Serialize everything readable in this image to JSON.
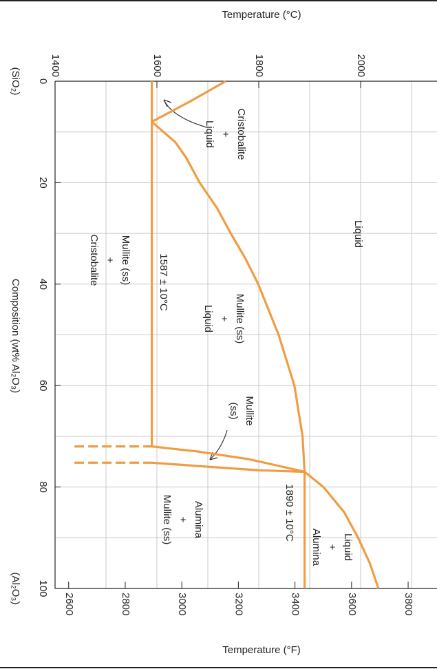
{
  "chart_data": {
    "type": "phase-diagram",
    "title": "Temperature (°C)",
    "y2_label": "Temperature (°F)",
    "x_label": "Composition (wt% Al₂O₃)",
    "x_left_label": "(SiO₂)",
    "x_right_label": "(Al₂O₃)",
    "xlim": [
      0,
      100
    ],
    "xticks": [
      0,
      20,
      40,
      60,
      80,
      100
    ],
    "xgrid": [
      10,
      20,
      30,
      40,
      50,
      60,
      70,
      80,
      90
    ],
    "ylim": [
      1400,
      2150
    ],
    "yticks": [
      1400,
      1600,
      1800,
      2000
    ],
    "ygrid": [
      1500,
      1600,
      1700,
      1800,
      1900,
      2000,
      2100
    ],
    "y2lim": [
      2552,
      3902
    ],
    "y2ticks": [
      2600,
      2800,
      3000,
      3200,
      3400,
      3600,
      3800
    ],
    "color": "#f09c42",
    "grid": true,
    "series": [
      {
        "x": [
          0,
          4,
          8
        ],
        "values": [
          1735,
          1665,
          1590
        ],
        "dash": false
      },
      {
        "x": [
          8,
          12,
          15,
          20,
          25,
          30,
          35,
          40,
          50,
          60,
          70,
          77
        ],
        "values": [
          1590,
          1636,
          1657,
          1684,
          1718,
          1745,
          1774,
          1799,
          1839,
          1870,
          1886,
          1890
        ],
        "dash": false
      },
      {
        "x": [
          77,
          80,
          85,
          90,
          95,
          100
        ],
        "values": [
          1890,
          1927,
          1968,
          1995,
          2018,
          2035
        ],
        "dash": false
      },
      {
        "x": [
          0,
          72
        ],
        "values": [
          1590,
          1590
        ],
        "dash": false
      },
      {
        "x": [
          72,
          73,
          74.5,
          77
        ],
        "values": [
          1590,
          1680,
          1780,
          1890
        ],
        "dash": false
      },
      {
        "x": [
          75.2,
          76,
          76.7,
          77
        ],
        "values": [
          1590,
          1700,
          1800,
          1890
        ],
        "dash": false
      },
      {
        "x": [
          77,
          100
        ],
        "values": [
          1890,
          1890
        ],
        "dash": false
      },
      {
        "x": [
          72,
          72
        ],
        "values": [
          1438,
          1590
        ],
        "dash": true
      },
      {
        "x": [
          75.2,
          75.2
        ],
        "values": [
          1438,
          1590
        ],
        "dash": true
      }
    ],
    "annotations": [
      {
        "lines": [
          "Cristobalite",
          "+",
          "Liquid"
        ]
      },
      {
        "lines": [
          "Liquid"
        ]
      },
      {
        "lines": [
          "Mullite (ss)",
          "+",
          "Cristobalite"
        ]
      },
      {
        "lines": [
          "1587 ± 10°C"
        ]
      },
      {
        "lines": [
          "Mullite (ss)",
          "+",
          "Liquid"
        ]
      },
      {
        "lines": [
          "Mullite",
          "(ss)"
        ]
      },
      {
        "lines": [
          "Alumina",
          "+",
          "Mullite (ss)"
        ]
      },
      {
        "lines": [
          "1890 ± 10°C"
        ]
      },
      {
        "lines": [
          "Liquid",
          "+",
          "Alumina"
        ]
      }
    ]
  }
}
